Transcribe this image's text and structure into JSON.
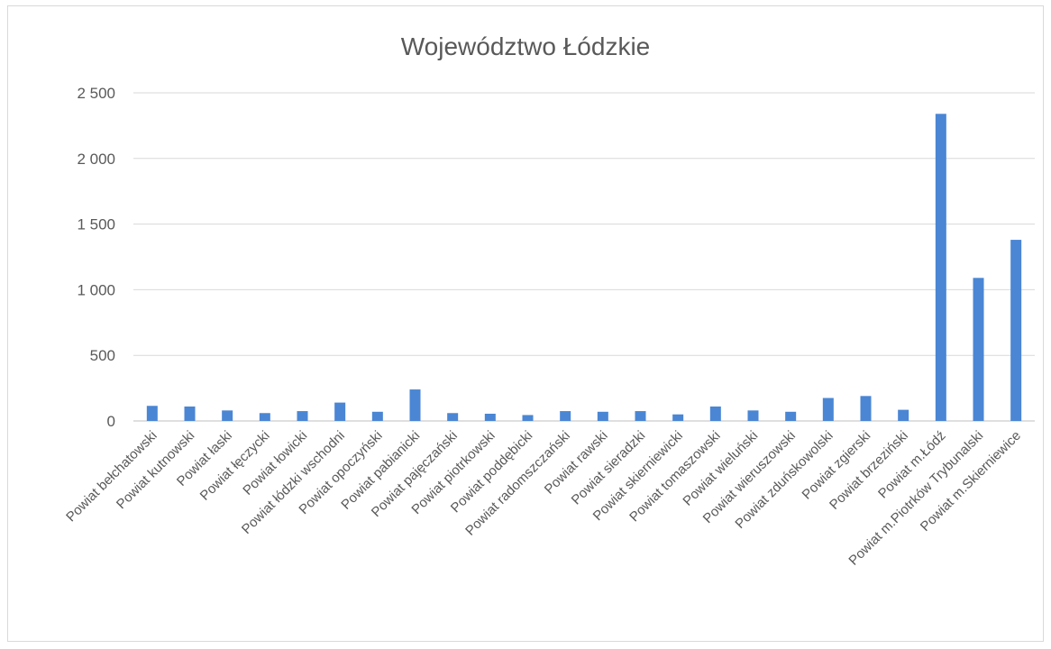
{
  "chart_data": {
    "type": "bar",
    "title": "Województwo Łódzkie",
    "xlabel": "",
    "ylabel": "",
    "ylim": [
      0,
      2500
    ],
    "yticks": [
      0,
      500,
      1000,
      1500,
      2000,
      2500
    ],
    "ytick_labels": [
      "0",
      "500",
      "1 000",
      "1 500",
      "2 000",
      "2 500"
    ],
    "grid": true,
    "legend": "none",
    "bar_color": "#4a86d4",
    "categories": [
      "Powiat bełchatowski",
      "Powiat kutnowski",
      "Powiat łaski",
      "Powiat łęczycki",
      "Powiat łowicki",
      "Powiat łódzki wschodni",
      "Powiat opoczyński",
      "Powiat pabianicki",
      "Powiat pajęczański",
      "Powiat piotrkowski",
      "Powiat poddębicki",
      "Powiat radomszczański",
      "Powiat rawski",
      "Powiat sieradzki",
      "Powiat skierniewicki",
      "Powiat tomaszowski",
      "Powiat wieluński",
      "Powiat wieruszowski",
      "Powiat zduńskowolski",
      "Powiat zgierski",
      "Powiat brzeziński",
      "Powiat m.Łódź",
      "Powiat m.Piotrków Trybunalski",
      "Powiat m.Skierniewice"
    ],
    "values": [
      115,
      110,
      80,
      60,
      75,
      140,
      70,
      240,
      60,
      55,
      45,
      75,
      70,
      75,
      50,
      110,
      80,
      70,
      175,
      190,
      85,
      2340,
      1090,
      1380
    ]
  }
}
